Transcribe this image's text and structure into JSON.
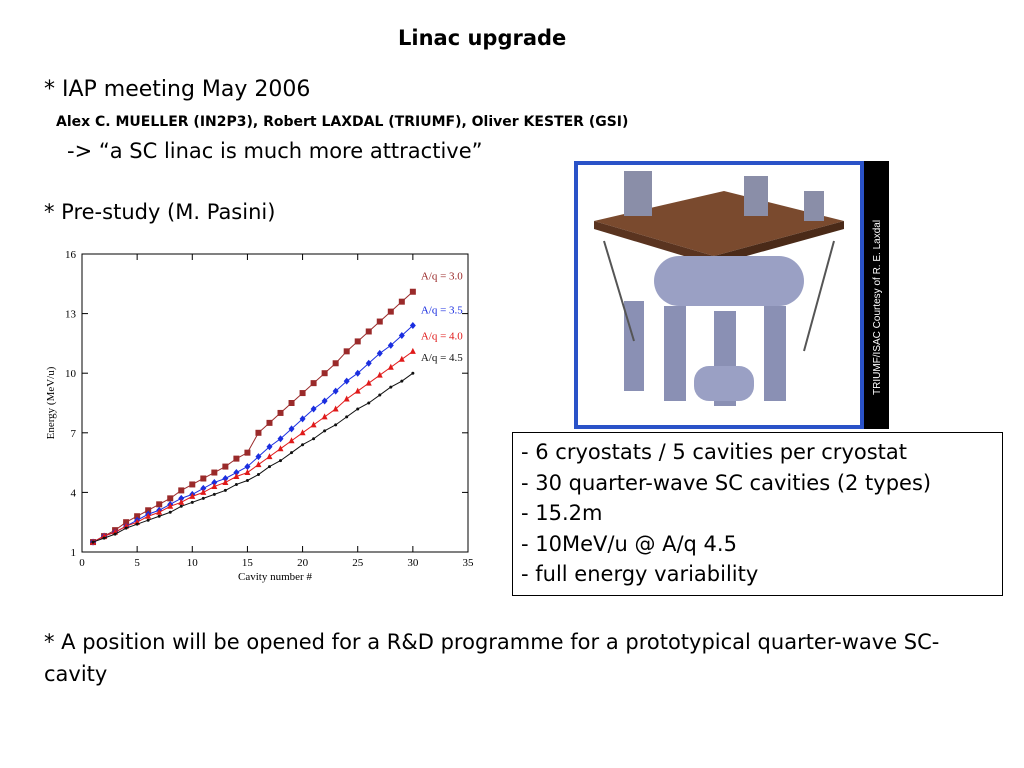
{
  "title": "Linac upgrade",
  "bullets": [
    "* IAP meeting May 2006",
    "Alex C. MUELLER (IN2P3), Robert LAXDAL (TRIUMF), Oliver KESTER (GSI)",
    "-> “a SC linac is much more attractive”",
    "* Pre-study (M. Pasini)"
  ],
  "chart_data": {
    "type": "line",
    "xlabel": "Cavity number #",
    "ylabel": "Energy (MeV/u)",
    "x": [
      1,
      2,
      3,
      4,
      5,
      6,
      7,
      8,
      9,
      10,
      11,
      12,
      13,
      14,
      15,
      16,
      17,
      18,
      19,
      20,
      21,
      22,
      23,
      24,
      25,
      26,
      27,
      28,
      29,
      30
    ],
    "series": [
      {
        "name": "A/q = 3.0",
        "color": "#9a2a2a",
        "marker": "square",
        "values": [
          1.5,
          1.8,
          2.1,
          2.5,
          2.8,
          3.1,
          3.4,
          3.7,
          4.1,
          4.4,
          4.7,
          5.0,
          5.3,
          5.7,
          6.0,
          7.0,
          7.5,
          8.0,
          8.5,
          9.0,
          9.5,
          10.0,
          10.5,
          11.1,
          11.6,
          12.1,
          12.6,
          13.1,
          13.6,
          14.1
        ]
      },
      {
        "name": "A/q = 3.5",
        "color": "#1a2ee0",
        "marker": "diamond",
        "values": [
          1.5,
          1.8,
          2.0,
          2.3,
          2.6,
          2.9,
          3.1,
          3.4,
          3.7,
          3.9,
          4.2,
          4.5,
          4.7,
          5.0,
          5.3,
          5.8,
          6.3,
          6.7,
          7.2,
          7.7,
          8.2,
          8.6,
          9.1,
          9.6,
          10.0,
          10.5,
          11.0,
          11.4,
          11.9,
          12.4
        ]
      },
      {
        "name": "A/q = 4.0",
        "color": "#e01a1a",
        "marker": "triangle",
        "values": [
          1.5,
          1.8,
          2.0,
          2.3,
          2.5,
          2.8,
          3.0,
          3.3,
          3.5,
          3.8,
          4.0,
          4.3,
          4.5,
          4.8,
          5.0,
          5.4,
          5.8,
          6.2,
          6.6,
          7.0,
          7.4,
          7.8,
          8.2,
          8.7,
          9.1,
          9.5,
          9.9,
          10.3,
          10.7,
          11.1
        ]
      },
      {
        "name": "A/q = 4.5",
        "color": "#111111",
        "marker": "dot",
        "values": [
          1.5,
          1.7,
          1.9,
          2.2,
          2.4,
          2.6,
          2.8,
          3.0,
          3.3,
          3.5,
          3.7,
          3.9,
          4.1,
          4.4,
          4.6,
          4.9,
          5.3,
          5.6,
          6.0,
          6.4,
          6.7,
          7.1,
          7.4,
          7.8,
          8.2,
          8.5,
          8.9,
          9.3,
          9.6,
          10.0
        ]
      }
    ],
    "xlim": [
      0,
      35
    ],
    "xticks": [
      0,
      5,
      10,
      15,
      20,
      25,
      30,
      35
    ],
    "ylim": [
      1,
      16
    ],
    "yticks": [
      1,
      4,
      7,
      10,
      13,
      16
    ],
    "grid": false
  },
  "image_caption": "TRIUMF/ISAC Courtesy of R. E. Laxdal",
  "info_box": [
    "- 6 cryostats / 5 cavities per cryostat",
    "- 30 quarter-wave SC cavities (2 types)",
    "- 15.2m",
    "- 10MeV/u @ A/q 4.5",
    "- full energy variability"
  ],
  "footer_bullet": "* A position will be opened for a R&D programme for a prototypical quarter-wave SC-cavity"
}
